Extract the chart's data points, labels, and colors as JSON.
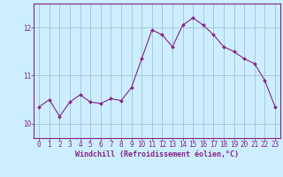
{
  "x": [
    0,
    1,
    2,
    3,
    4,
    5,
    6,
    7,
    8,
    9,
    10,
    11,
    12,
    13,
    14,
    15,
    16,
    17,
    18,
    19,
    20,
    21,
    22,
    23
  ],
  "y": [
    10.35,
    10.5,
    10.15,
    10.45,
    10.6,
    10.45,
    10.42,
    10.52,
    10.48,
    10.75,
    11.35,
    11.95,
    11.85,
    11.6,
    12.05,
    12.2,
    12.05,
    11.85,
    11.6,
    11.5,
    11.35,
    11.25,
    10.9,
    10.35
  ],
  "line_color": "#882288",
  "marker": "D",
  "markersize": 2.0,
  "linewidth": 0.8,
  "bg_color": "#cceeff",
  "grid_color": "#99bbcc",
  "xlabel": "Windchill (Refroidissement éolien,°C)",
  "xlabel_fontsize": 6.0,
  "tick_fontsize": 5.5,
  "yticks": [
    10,
    11,
    12
  ],
  "ylim": [
    9.7,
    12.5
  ],
  "xlim": [
    -0.5,
    23.5
  ]
}
